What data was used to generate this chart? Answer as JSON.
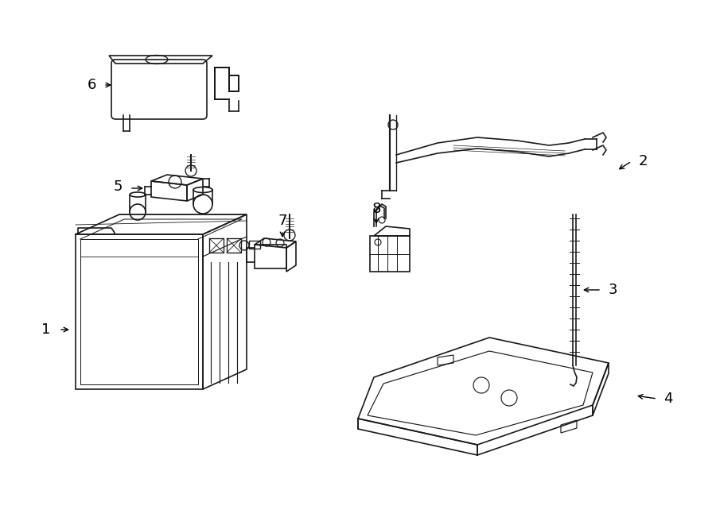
{
  "background_color": "#ffffff",
  "line_color": "#1a1a1a",
  "fig_width": 9.0,
  "fig_height": 6.61,
  "dpi": 100
}
